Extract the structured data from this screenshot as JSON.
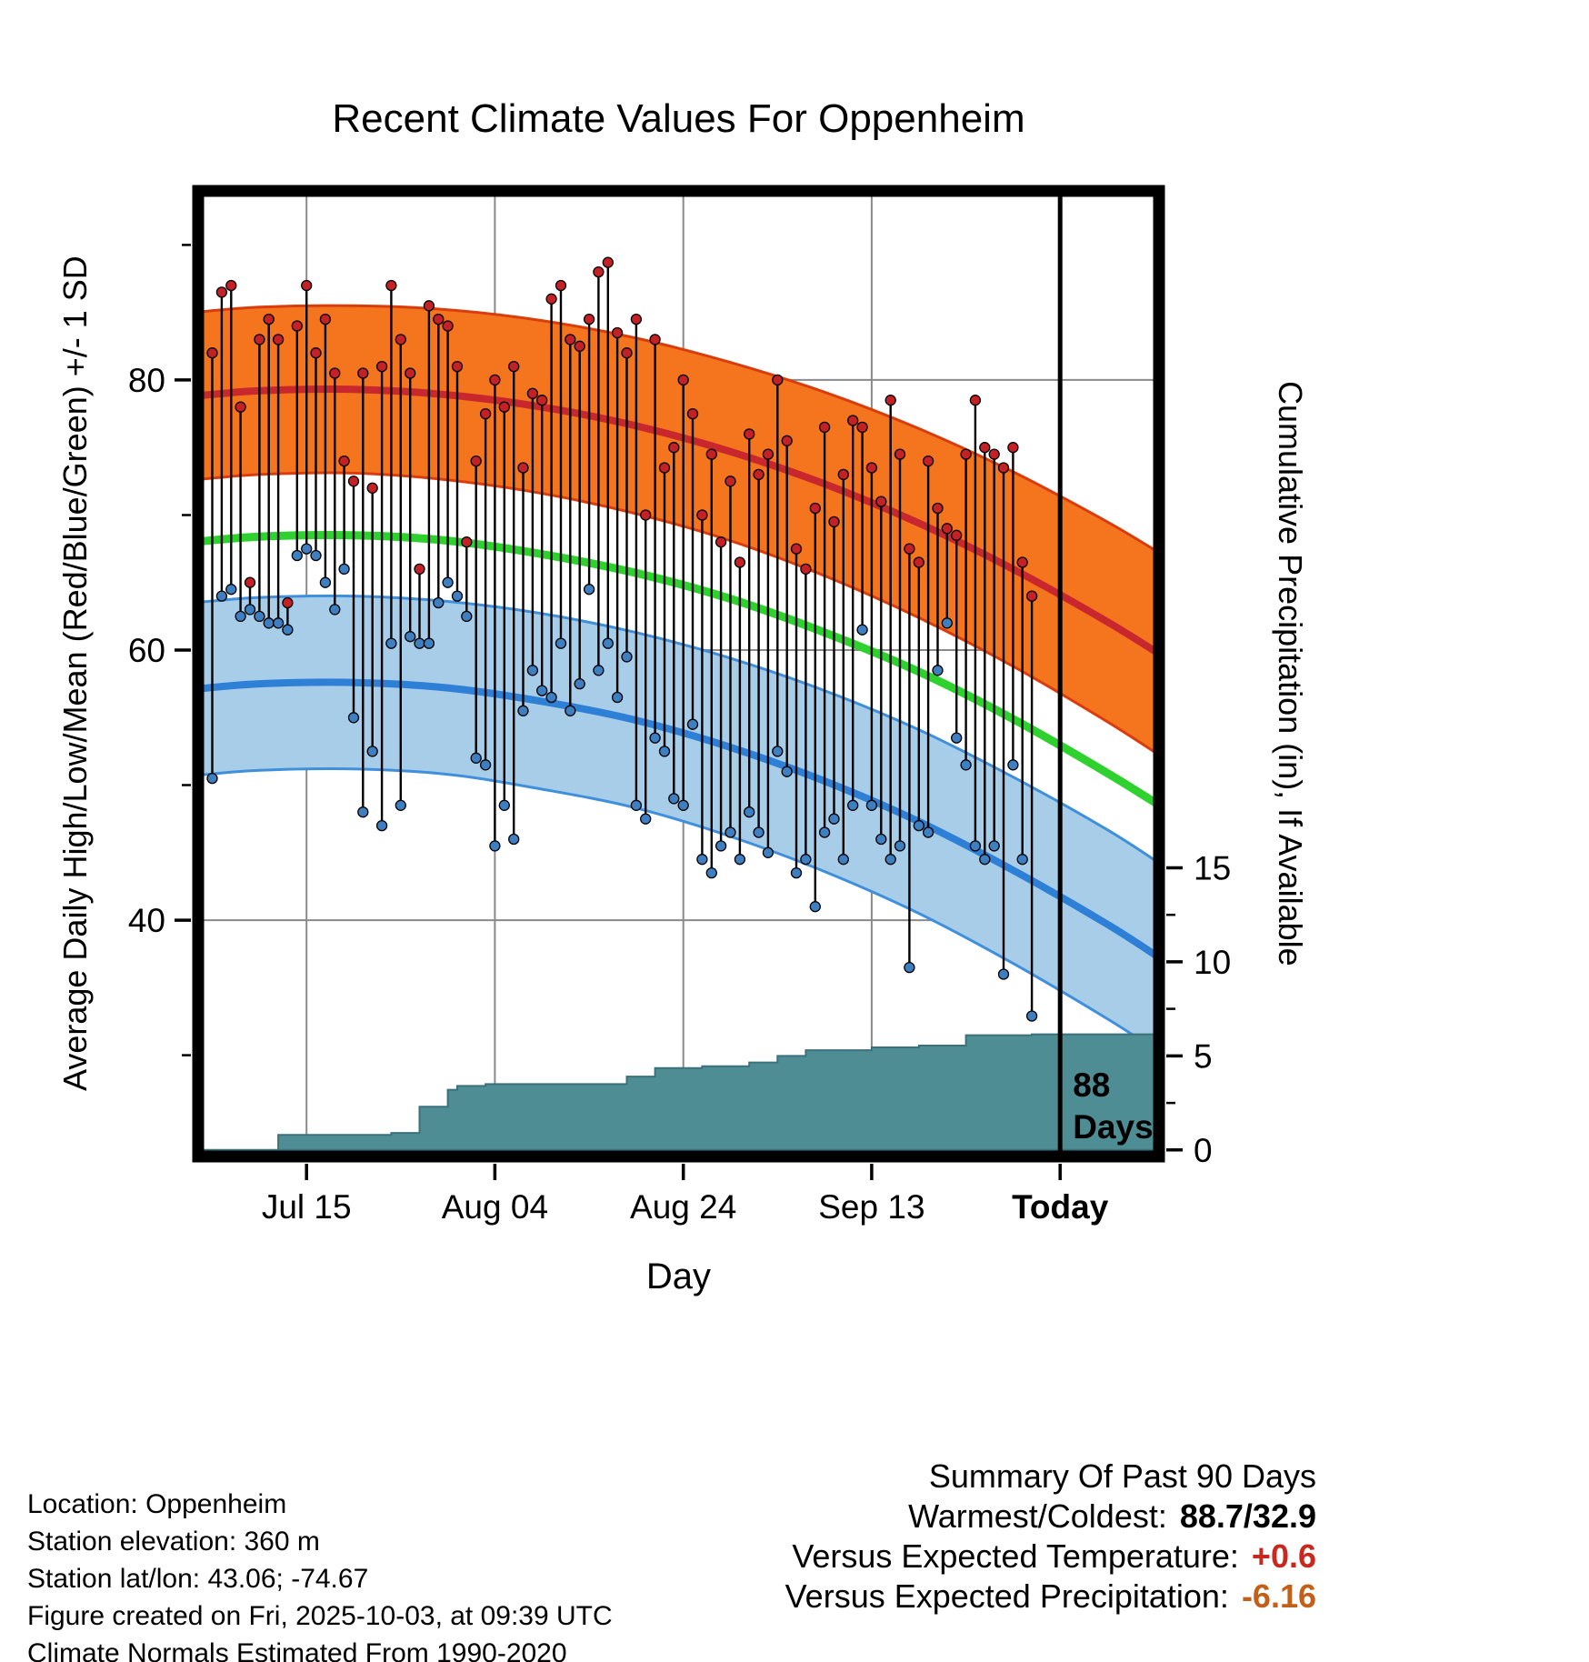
{
  "footer": {
    "location": "Location: Oppenheim",
    "elevation": "Station elevation: 360 m",
    "latlon": "Station lat/lon: 43.06; -74.67",
    "created": "Figure created on Fri, 2025-10-03, at 09:39 UTC",
    "normals": "Climate Normals Estimated From 1990-2020"
  },
  "summary": {
    "heading": "Summary Of Past 90 Days",
    "warmest_coldest_label": "Warmest/Coldest:",
    "warmest_coldest_value": "88.7/32.9",
    "vs_temp_label": "Versus Expected Temperature:",
    "vs_temp_value": "+0.6",
    "vs_precip_label": "Versus Expected Precipitation:",
    "vs_precip_value": "-6.16"
  },
  "colors": {
    "high_band_fill": "#f4751d",
    "high_band_edge": "#d93d0e",
    "high_mean_line": "#c8272e",
    "low_band_fill": "#a7cde9",
    "low_band_edge": "#3f8fdb",
    "low_mean_line": "#2e7fd6",
    "mean_line": "#2fd12f",
    "precip_fill": "#4f8d95",
    "precip_edge": "#3a717b",
    "high_dot": "#c42127",
    "low_dot": "#3d7fc1",
    "whisker": "#000000",
    "grid": "#8a8a8a",
    "vs_temp_color": "#c8281e",
    "vs_precip_color": "#c2601a"
  },
  "chart_data": {
    "type": "line",
    "title": "Recent Climate Values For Oppenheim",
    "xlabel": "Day",
    "ylabel_left": "Average Daily High/Low/Mean (Red/Blue/Green) +/- 1 SD",
    "ylabel_right": "Cumulative Precipitation (in), If Available",
    "x_ticks": [
      {
        "label": "Jul 15",
        "day": 10,
        "bold": false
      },
      {
        "label": "Aug 04",
        "day": 30,
        "bold": false
      },
      {
        "label": "Aug 24",
        "day": 50,
        "bold": false
      },
      {
        "label": "Sep 13",
        "day": 70,
        "bold": false
      },
      {
        "label": "Today",
        "day": 90,
        "bold": true
      }
    ],
    "y_left_ticks": [
      80,
      60,
      40
    ],
    "y_left_minor_ticks": [
      90,
      70,
      50,
      30
    ],
    "y_right_ticks": [
      15,
      10,
      5,
      0
    ],
    "y_right_minor_ticks": [
      12.5,
      7.5,
      2.5
    ],
    "day_range": [
      -1.5,
      100.5
    ],
    "temp_range": [
      22.5,
      94.0
    ],
    "precip_range": [
      -0.35,
      51.0
    ],
    "today_day": 90,
    "annotation": {
      "line1": "88",
      "line2": "Days"
    },
    "normals": {
      "day": [
        -2,
        5,
        15,
        25,
        35,
        45,
        55,
        65,
        75,
        85,
        95,
        101
      ],
      "high_mean": [
        78.8,
        79.2,
        79.3,
        78.9,
        78.0,
        76.6,
        74.7,
        72.3,
        69.4,
        66.0,
        62.1,
        59.5
      ],
      "high_sd": [
        6.2,
        6.2,
        6.2,
        6.3,
        6.4,
        6.5,
        6.6,
        6.8,
        7.0,
        7.2,
        7.4,
        7.5
      ],
      "low_mean": [
        57.1,
        57.5,
        57.6,
        57.2,
        56.2,
        54.8,
        52.8,
        50.3,
        47.3,
        43.7,
        39.7,
        37.0
      ],
      "low_sd": [
        6.4,
        6.4,
        6.4,
        6.4,
        6.5,
        6.5,
        6.6,
        6.7,
        6.8,
        6.9,
        7.0,
        7.0
      ],
      "mean": [
        68.0,
        68.4,
        68.5,
        68.1,
        67.1,
        65.7,
        63.8,
        61.3,
        58.4,
        54.9,
        50.9,
        48.3
      ]
    },
    "daily": {
      "start_day": 0,
      "high": [
        82,
        86.5,
        87,
        78,
        65,
        83,
        84.5,
        83,
        63.5,
        84,
        87,
        82,
        84.5,
        80.5,
        74,
        72.5,
        80.5,
        72,
        81,
        87,
        83,
        80.5,
        66,
        85.5,
        84.5,
        84,
        81,
        68,
        74,
        77.5,
        80,
        78,
        81,
        73.5,
        79,
        78.5,
        86,
        87,
        83,
        82.5,
        84.5,
        88,
        88.7,
        83.5,
        82,
        84.5,
        70,
        83,
        73.5,
        75,
        80,
        77.5,
        70,
        74.5,
        68,
        72.5,
        66.5,
        76,
        73,
        74.5,
        80,
        75.5,
        67.5,
        66,
        70.5,
        76.5,
        69.5,
        73,
        77,
        76.5,
        73.5,
        71,
        78.5,
        74.5,
        67.5,
        66.5,
        74,
        70.5,
        69,
        68.5,
        74.5,
        78.5,
        75,
        74.5,
        73.5,
        75,
        66.5,
        64
      ],
      "low": [
        50.5,
        64,
        64.5,
        62.5,
        63,
        62.5,
        62,
        62,
        61.5,
        67,
        67.5,
        67,
        65,
        63,
        66,
        55,
        48,
        52.5,
        47,
        60.5,
        48.5,
        61,
        60.5,
        60.5,
        63.5,
        65,
        64,
        62.5,
        52,
        51.5,
        45.5,
        48.5,
        46,
        55.5,
        58.5,
        57,
        56.5,
        60.5,
        55.5,
        57.5,
        64.5,
        58.5,
        60.5,
        56.5,
        59.5,
        48.5,
        47.5,
        53.5,
        52.5,
        49,
        48.5,
        54.5,
        44.5,
        43.5,
        45.5,
        46.5,
        44.5,
        48,
        46.5,
        45,
        52.5,
        51,
        43.5,
        44.5,
        41,
        46.5,
        47.5,
        44.5,
        48.5,
        61.5,
        48.5,
        46,
        44.5,
        45.5,
        36.5,
        47,
        46.5,
        58.5,
        62,
        53.5,
        51.5,
        45.5,
        44.5,
        45.5,
        36,
        51.5,
        44.5,
        32.9
      ]
    },
    "precip_steps": {
      "day": [
        -1.5,
        6,
        7,
        18,
        19,
        21,
        22,
        24,
        25,
        26,
        29,
        43,
        44,
        46,
        47,
        51,
        52,
        56,
        57,
        59,
        60,
        62,
        63,
        69,
        70,
        74,
        75,
        79,
        80,
        86,
        87,
        100.5
      ],
      "value": [
        0,
        0,
        0.8,
        0.8,
        0.9,
        0.9,
        2.3,
        2.3,
        3.2,
        3.4,
        3.5,
        3.5,
        3.9,
        3.9,
        4.35,
        4.35,
        4.45,
        4.45,
        4.65,
        4.65,
        5.0,
        5.0,
        5.3,
        5.3,
        5.45,
        5.45,
        5.55,
        5.55,
        6.1,
        6.1,
        6.15,
        6.15
      ]
    }
  }
}
